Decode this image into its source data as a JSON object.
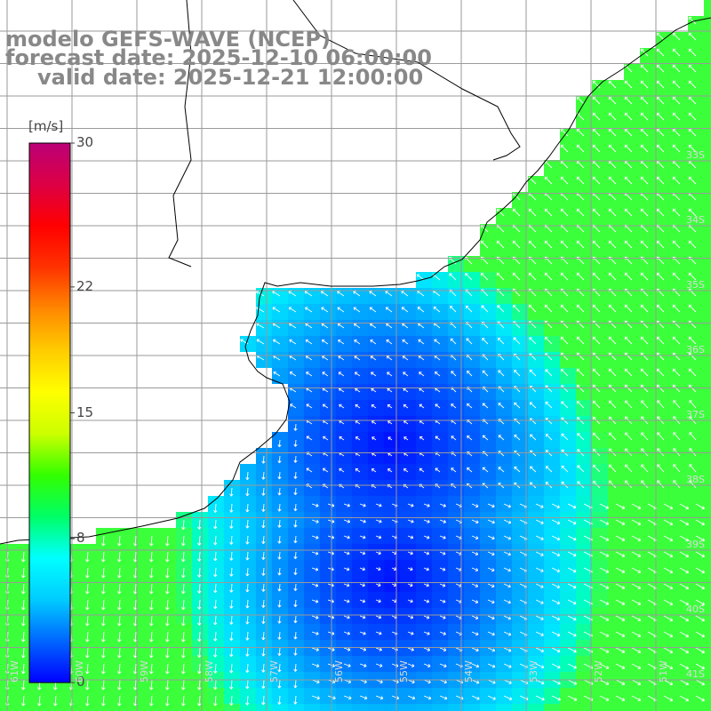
{
  "title": {
    "line1": "modelo GEFS-WAVE (NCEP)",
    "line2": "forecast date: 2025-12-10 06:00:00",
    "line3": "valid date: 2025-12-21 12:00:00"
  },
  "colorbar": {
    "unit": "[m/s]",
    "min": 0,
    "max": 30,
    "ticks": [
      {
        "value": 30,
        "label": "30"
      },
      {
        "value": 22,
        "label": "22"
      },
      {
        "value": 15,
        "label": "15"
      },
      {
        "value": 8,
        "label": "8"
      },
      {
        "value": 0,
        "label": "0"
      }
    ],
    "colors": [
      "#0000ff",
      "#0066ff",
      "#00ccff",
      "#00ffff",
      "#00ff66",
      "#33ff00",
      "#ccff00",
      "#ffff00",
      "#ffcc00",
      "#ff8800",
      "#ff3300",
      "#ff0000",
      "#dd0044",
      "#bb0077"
    ]
  },
  "map": {
    "lat_range": [
      -41,
      -30
    ],
    "lon_range": [
      -61,
      -50
    ],
    "lat_labels": [
      "33S",
      "34S",
      "35S",
      "36S",
      "37S",
      "38S",
      "39S",
      "40S",
      "41S"
    ],
    "lon_labels": [
      "61W",
      "60W",
      "59W",
      "58W",
      "57W",
      "56W",
      "55W",
      "54W",
      "53W",
      "52W",
      "51W"
    ],
    "ocean_color_deep": "#0010ff",
    "ocean_color_mid": "#0a8cff",
    "ocean_color_high": "#00e6ff",
    "land_color": "#ffffff",
    "coast_color": "#000000",
    "grid_color": "#9a9a9a"
  }
}
